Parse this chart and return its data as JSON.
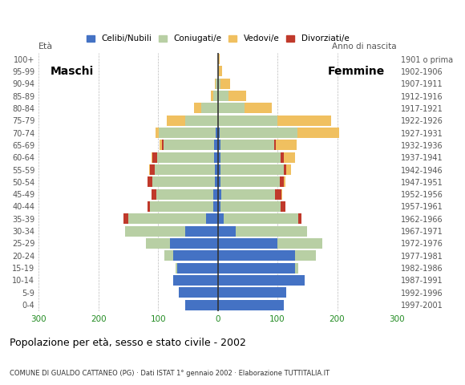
{
  "title": "Popolazione per età, sesso e stato civile - 2002",
  "subtitle": "COMUNE DI GUALDO CATTANEO (PG) · Dati ISTAT 1° gennaio 2002 · Elaborazione TUTTITALIA.IT",
  "age_groups_bottom_to_top": [
    "0-4",
    "5-9",
    "10-14",
    "15-19",
    "20-24",
    "25-29",
    "30-34",
    "35-39",
    "40-44",
    "45-49",
    "50-54",
    "55-59",
    "60-64",
    "65-69",
    "70-74",
    "75-79",
    "80-84",
    "85-89",
    "90-94",
    "95-99",
    "100+"
  ],
  "birth_years_bottom_to_top": [
    "1997-2001",
    "1992-1996",
    "1987-1991",
    "1982-1986",
    "1977-1981",
    "1972-1976",
    "1967-1971",
    "1962-1966",
    "1957-1961",
    "1952-1956",
    "1947-1951",
    "1942-1946",
    "1937-1941",
    "1932-1936",
    "1927-1931",
    "1922-1926",
    "1917-1921",
    "1912-1916",
    "1907-1911",
    "1902-1906",
    "1901 o prima"
  ],
  "males_bottom_to_top": {
    "celibe": [
      55,
      65,
      75,
      68,
      75,
      80,
      55,
      20,
      8,
      8,
      5,
      5,
      6,
      6,
      4,
      0,
      0,
      0,
      0,
      0,
      0
    ],
    "coniugato": [
      0,
      0,
      0,
      3,
      15,
      40,
      100,
      130,
      105,
      95,
      105,
      100,
      95,
      85,
      95,
      55,
      28,
      8,
      3,
      0,
      0
    ],
    "vedovo": [
      0,
      0,
      0,
      0,
      0,
      0,
      0,
      0,
      0,
      0,
      0,
      2,
      2,
      3,
      5,
      30,
      12,
      4,
      2,
      0,
      0
    ],
    "divorziato": [
      0,
      0,
      0,
      0,
      0,
      0,
      0,
      8,
      5,
      8,
      8,
      8,
      8,
      3,
      0,
      0,
      0,
      0,
      0,
      0,
      0
    ]
  },
  "females_bottom_to_top": {
    "celibe": [
      110,
      115,
      145,
      130,
      130,
      100,
      30,
      10,
      5,
      6,
      4,
      5,
      5,
      5,
      3,
      0,
      0,
      0,
      0,
      0,
      0
    ],
    "coniugato": [
      0,
      0,
      0,
      5,
      35,
      75,
      120,
      125,
      100,
      90,
      100,
      105,
      100,
      90,
      130,
      100,
      45,
      18,
      5,
      2,
      0
    ],
    "vedovo": [
      0,
      0,
      0,
      0,
      0,
      0,
      0,
      0,
      0,
      2,
      3,
      8,
      20,
      35,
      70,
      90,
      45,
      30,
      15,
      5,
      3
    ],
    "divorziato": [
      0,
      0,
      0,
      0,
      0,
      0,
      0,
      5,
      8,
      10,
      6,
      5,
      5,
      2,
      0,
      0,
      0,
      0,
      0,
      0,
      0
    ]
  },
  "colors": {
    "celibe": "#4472c4",
    "coniugato": "#b8cfa4",
    "vedovo": "#f0c060",
    "divorziato": "#c0392b"
  },
  "xlim": 300,
  "background": "#ffffff",
  "bar_height": 0.85
}
